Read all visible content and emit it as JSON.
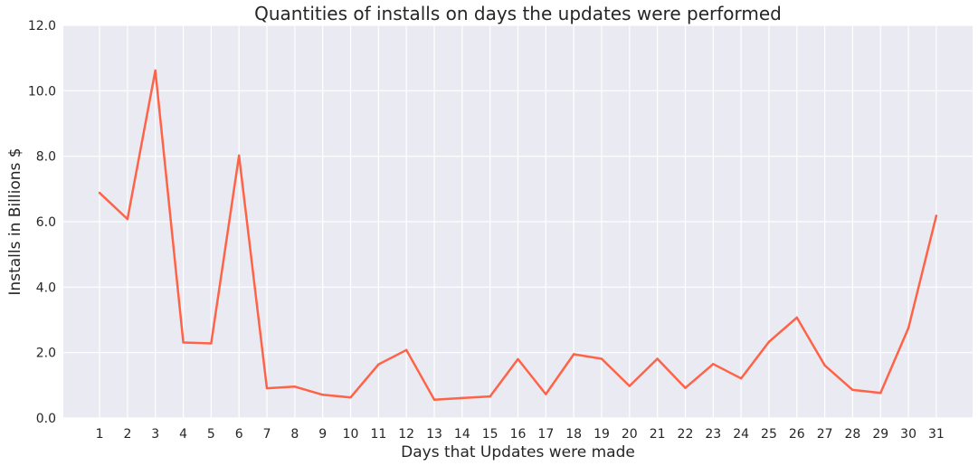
{
  "chart_data": {
    "type": "line",
    "title": "Quantities of installs on days the updates were performed",
    "xlabel": "Days that Updates were made",
    "ylabel": "Installs in Billions $",
    "x": [
      1,
      2,
      3,
      4,
      5,
      6,
      7,
      8,
      9,
      10,
      11,
      12,
      13,
      14,
      15,
      16,
      17,
      18,
      19,
      20,
      21,
      22,
      23,
      24,
      25,
      26,
      27,
      28,
      29,
      30,
      31
    ],
    "x_tick_labels": [
      "1",
      "2",
      "3",
      "4",
      "5",
      "6",
      "7",
      "8",
      "9",
      "10",
      "11",
      "12",
      "13",
      "14",
      "15",
      "16",
      "17",
      "18",
      "19",
      "20",
      "21",
      "22",
      "23",
      "24",
      "25",
      "26",
      "27",
      "28",
      "29",
      "30",
      "31"
    ],
    "series": [
      {
        "values": [
          6.88,
          6.08,
          10.62,
          2.31,
          2.28,
          8.02,
          0.91,
          0.96,
          0.71,
          0.63,
          1.64,
          2.08,
          0.56,
          0.61,
          0.66,
          1.8,
          0.73,
          1.95,
          1.81,
          0.98,
          1.81,
          0.92,
          1.65,
          1.21,
          2.33,
          3.07,
          1.61,
          0.86,
          0.77,
          2.75,
          6.18
        ],
        "color": "#ff6347"
      }
    ],
    "xlim": [
      -0.3,
      32.3
    ],
    "ylim": [
      0,
      12
    ],
    "y_ticks": [
      0,
      2,
      4,
      6,
      8,
      10,
      12
    ],
    "y_tick_labels": [
      "0.0",
      "2.0",
      "4.0",
      "6.0",
      "8.0",
      "10.0",
      "12.0"
    ],
    "grid": true,
    "background": "#eaeaf2",
    "grid_color": "#ffffff"
  }
}
